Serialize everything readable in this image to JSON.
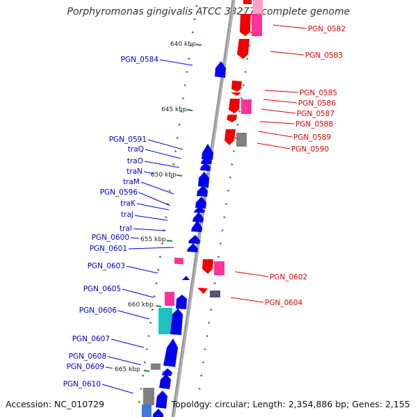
{
  "title": "Porphyromonas gingivalis ATCC 33277, complete genome",
  "footer": {
    "accession": "Accession: NC_010729",
    "summary": "Topology: circular; Length: 2,354,886 bp; Genes: 2,155"
  },
  "colors": {
    "forward_strand": "#0000ee",
    "reverse_strand": "#ee0000",
    "tick": "#228b22",
    "backbone": "#999999",
    "pink": "#ff3399",
    "gray": "#808080",
    "cyan": "#20c0c0",
    "slate": "#555577"
  },
  "scale_labels": [
    "640 kbp",
    "645 kbp",
    "650 kbp",
    "655 kbp",
    "660 kbp",
    "665 kbp"
  ],
  "left_labels": [
    "PGN_0584",
    "PGN_0591",
    "traQ",
    "traO",
    "traN",
    "traM",
    "PGN_0596",
    "traK",
    "traJ",
    "traI",
    "PGN_0600",
    "PGN_0601",
    "PGN_0603",
    "PGN_0605",
    "PGN_0606",
    "PGN_0607",
    "PGN_0608",
    "PGN_0609",
    "PGN_0610"
  ],
  "right_labels": [
    "PGN_0582",
    "PGN_0583",
    "PGN_0585",
    "PGN_0586",
    "PGN_0587",
    "PGN_0588",
    "PGN_0589",
    "PGN_0590",
    "PGN_0602",
    "PGN_0604"
  ],
  "genes_forward": [
    {
      "name": "PGN_0584",
      "color": "blue"
    },
    {
      "name": "PGN_0591",
      "color": "blue"
    },
    {
      "name": "traQ",
      "color": "blue"
    },
    {
      "name": "traO",
      "color": "blue"
    },
    {
      "name": "traN",
      "color": "blue"
    },
    {
      "name": "traM",
      "color": "blue"
    },
    {
      "name": "PGN_0596",
      "color": "blue"
    },
    {
      "name": "traK",
      "color": "blue"
    },
    {
      "name": "traJ",
      "color": "blue"
    },
    {
      "name": "traI",
      "color": "blue"
    },
    {
      "name": "PGN_0600",
      "color": "blue"
    },
    {
      "name": "PGN_0601",
      "color": "pink"
    },
    {
      "name": "PGN_0603",
      "color": "blue"
    },
    {
      "name": "PGN_0605",
      "color": "pink"
    },
    {
      "name": "PGN_0606",
      "color": "cyan"
    },
    {
      "name": "PGN_0607",
      "color": "blue"
    },
    {
      "name": "PGN_0608",
      "color": "gray"
    },
    {
      "name": "PGN_0609",
      "color": "blue"
    },
    {
      "name": "PGN_0610",
      "color": "blue"
    }
  ],
  "genes_reverse": [
    {
      "name": "PGN_0582",
      "color": "red"
    },
    {
      "name": "PGN_0583",
      "color": "red"
    },
    {
      "name": "PGN_0585",
      "color": "red"
    },
    {
      "name": "PGN_0586",
      "color": "pink"
    },
    {
      "name": "PGN_0587",
      "color": "red"
    },
    {
      "name": "PGN_0588",
      "color": "red"
    },
    {
      "name": "PGN_0589",
      "color": "gray"
    },
    {
      "name": "PGN_0590",
      "color": "red"
    },
    {
      "name": "PGN_0602",
      "color": "red"
    },
    {
      "name": "PGN_0604",
      "color": "slate"
    }
  ]
}
